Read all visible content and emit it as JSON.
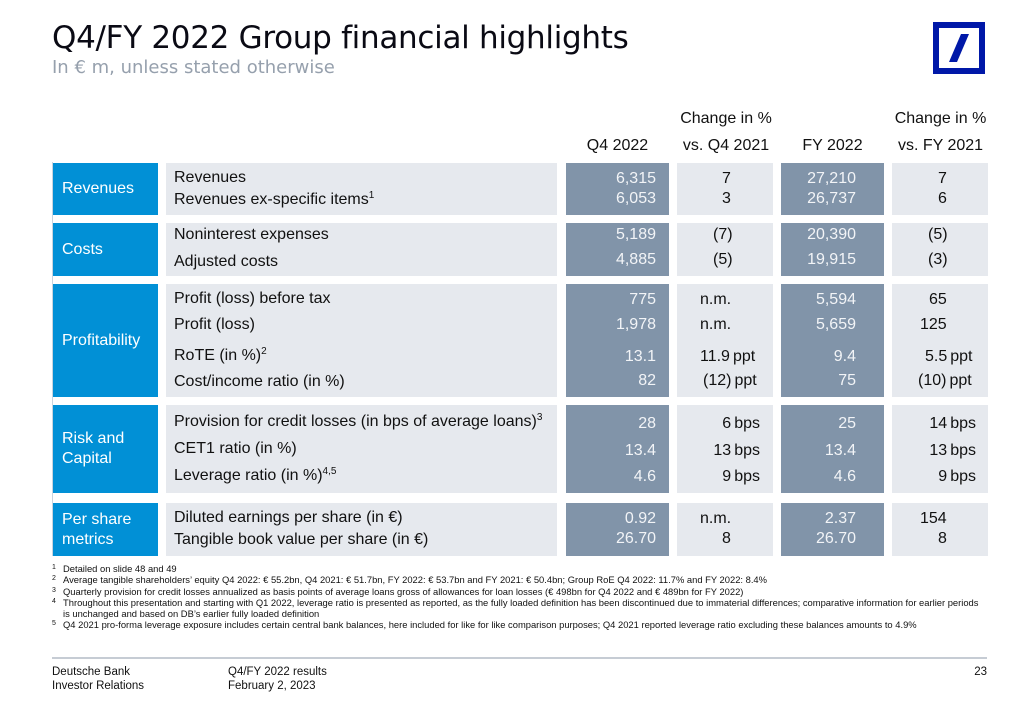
{
  "header": {
    "title": "Q4/FY 2022 Group financial highlights",
    "subtitle": "In € m, unless stated otherwise",
    "logo": "deutsche-bank-logo"
  },
  "columns": {
    "q4_2022": "Q4 2022",
    "chg_q4_line1": "Change in %",
    "chg_q4_line2": "vs. Q4 2021",
    "fy_2022": "FY 2022",
    "chg_fy_line1": "Change in %",
    "chg_fy_line2": "vs. FY 2021"
  },
  "sections": [
    {
      "label": "Revenues",
      "rows": [
        {
          "label": "Revenues",
          "sup": "",
          "q4": "6,315",
          "chg_q4": "7",
          "chg_q4_unit": "",
          "fy": "27,210",
          "chg_fy": "7",
          "chg_fy_unit": ""
        },
        {
          "label": "Revenues ex-specific items",
          "sup": "1",
          "q4": "6,053",
          "chg_q4": "3",
          "chg_q4_unit": "",
          "fy": "26,737",
          "chg_fy": "6",
          "chg_fy_unit": ""
        }
      ]
    },
    {
      "label": "Costs",
      "rows": [
        {
          "label": "Noninterest expenses",
          "sup": "",
          "q4": "5,189",
          "chg_q4": "(7)",
          "chg_q4_unit": "",
          "fy": "20,390",
          "chg_fy": "(5)",
          "chg_fy_unit": ""
        },
        {
          "label": "Adjusted costs",
          "sup": "",
          "q4": "4,885",
          "chg_q4": "(5)",
          "chg_q4_unit": "",
          "fy": "19,915",
          "chg_fy": "(3)",
          "chg_fy_unit": ""
        }
      ]
    },
    {
      "label": "Profitability",
      "rows": [
        {
          "label": "Profit (loss) before tax",
          "sup": "",
          "q4": "775",
          "chg_q4": "n.m.",
          "chg_q4_unit": "",
          "fy": "5,594",
          "chg_fy": "65",
          "chg_fy_unit": ""
        },
        {
          "label": "Profit (loss)",
          "sup": "",
          "q4": "1,978",
          "chg_q4": "n.m.",
          "chg_q4_unit": "",
          "fy": "5,659",
          "chg_fy": "125",
          "chg_fy_unit": ""
        },
        {
          "label": "RoTE (in %)",
          "sup": "2",
          "q4": "13.1",
          "chg_q4": "11.9",
          "chg_q4_unit": "ppt",
          "fy": "9.4",
          "chg_fy": "5.5",
          "chg_fy_unit": "ppt"
        },
        {
          "label": "Cost/income ratio (in %)",
          "sup": "",
          "q4": "82",
          "chg_q4": "(12)",
          "chg_q4_unit": "ppt",
          "fy": "75",
          "chg_fy": "(10)",
          "chg_fy_unit": "ppt"
        }
      ]
    },
    {
      "label_line1": "Risk and",
      "label_line2": "Capital",
      "rows": [
        {
          "label": "Provision for credit losses (in bps of average loans)",
          "sup": "3",
          "q4": "28",
          "chg_q4": "6",
          "chg_q4_unit": "bps",
          "fy": "25",
          "chg_fy": "14",
          "chg_fy_unit": "bps"
        },
        {
          "label": "CET1 ratio (in %)",
          "sup": "",
          "q4": "13.4",
          "chg_q4": "13",
          "chg_q4_unit": "bps",
          "fy": "13.4",
          "chg_fy": "13",
          "chg_fy_unit": "bps"
        },
        {
          "label": "Leverage ratio (in %)",
          "sup": "4,5",
          "q4": "4.6",
          "chg_q4": "9",
          "chg_q4_unit": "bps",
          "fy": "4.6",
          "chg_fy": "9",
          "chg_fy_unit": "bps"
        }
      ]
    },
    {
      "label_line1": "Per share",
      "label_line2": "metrics",
      "rows": [
        {
          "label": "Diluted earnings per share (in €)",
          "sup": "",
          "q4": "0.92",
          "chg_q4": "n.m.",
          "chg_q4_unit": "",
          "fy": "2.37",
          "chg_fy": "154",
          "chg_fy_unit": ""
        },
        {
          "label": "Tangible book value per share (in €)",
          "sup": "",
          "q4": "26.70",
          "chg_q4": "8",
          "chg_q4_unit": "",
          "fy": "26.70",
          "chg_fy": "8",
          "chg_fy_unit": ""
        }
      ]
    }
  ],
  "footnotes": [
    {
      "num": "1",
      "text": "Detailed on slide 48 and 49"
    },
    {
      "num": "2",
      "text": "Average tangible shareholders’ equity Q4 2022: € 55.2bn, Q4 2021: € 51.7bn, FY 2022: € 53.7bn and FY 2021: € 50.4bn; Group RoE Q4 2022: 11.7% and FY 2022: 8.4%"
    },
    {
      "num": "3",
      "text": "Quarterly provision for credit losses annualized as basis points of average loans gross of allowances for loan losses (€ 498bn for Q4 2022 and € 489bn for FY 2022)"
    },
    {
      "num": "4",
      "text": "Throughout this presentation and starting with Q1 2022, leverage ratio is presented as reported, as the fully loaded definition has been discontinued due to immaterial differences; comparative information for earlier periods is unchanged and based on DB’s earlier fully loaded definition"
    },
    {
      "num": "5",
      "text": "Q4 2021 pro-forma leverage exposure includes certain central bank balances, here included for like for like comparison purposes; Q4 2021 reported leverage ratio excluding these balances amounts to 4.9%"
    }
  ],
  "footer": {
    "company_line1": "Deutsche Bank",
    "company_line2": "Investor Relations",
    "doc_line1": "Q4/FY 2022 results",
    "doc_line2": "February 2, 2023",
    "page_number": "23"
  },
  "colors": {
    "section_blue": "#0190d6",
    "value_dark": "#8194a9",
    "value_light": "#e6e9ee",
    "logo_blue": "#0018a8"
  }
}
